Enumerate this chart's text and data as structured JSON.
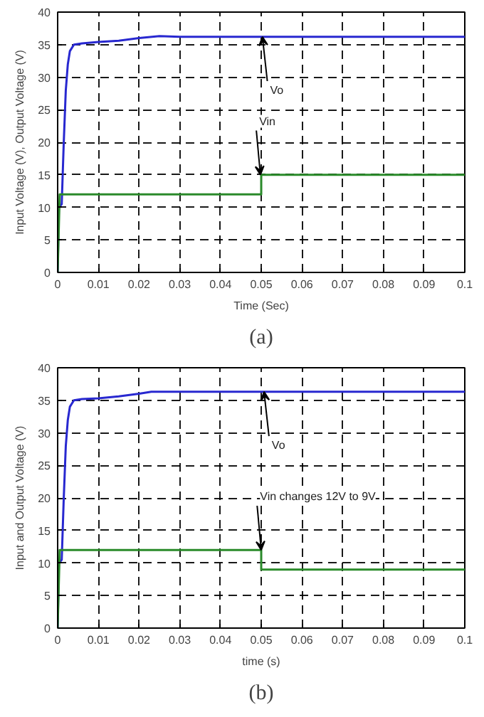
{
  "chart_data": [
    {
      "type": "line",
      "xlabel": "Time (Sec)",
      "ylabel": "Input Voltage (V), Output Voltage (V)",
      "xlim": [
        0,
        0.1
      ],
      "ylim": [
        0,
        40
      ],
      "xticks": [
        0,
        0.01,
        0.02,
        0.03,
        0.04,
        0.05,
        0.06,
        0.07,
        0.08,
        0.09,
        0.1
      ],
      "yticks": [
        0,
        5,
        10,
        15,
        20,
        25,
        30,
        35,
        40
      ],
      "grid": true,
      "line_style": "solid",
      "marker": "none",
      "series": [
        {
          "color": "#2828d0",
          "x": [
            0,
            0.0003,
            0.001,
            0.0015,
            0.002,
            0.0025,
            0.003,
            0.004,
            0.006,
            0.01,
            0.015,
            0.02,
            0.025,
            0.03,
            0.1
          ],
          "values": [
            0,
            10,
            10.5,
            20,
            28,
            32,
            34,
            35,
            35.2,
            35.4,
            35.6,
            36,
            36.3,
            36.2,
            36.2
          ]
        },
        {
          "color": "#2a8a2a",
          "x": [
            0,
            0.0005,
            0.05,
            0.05,
            0.1
          ],
          "values": [
            0,
            12,
            12,
            15,
            15
          ]
        }
      ],
      "annotations": [
        {
          "text": "Vo",
          "x": 0.0503,
          "y": 36.2
        },
        {
          "text": "Vin",
          "x": 0.0498,
          "y": 15
        },
        "(a)"
      ]
    },
    {
      "type": "line",
      "xlabel": "time (s)",
      "ylabel": "Input and Output Voltage (V)",
      "xlim": [
        0,
        0.1
      ],
      "ylim": [
        0,
        40
      ],
      "xticks": [
        0,
        0.01,
        0.02,
        0.03,
        0.04,
        0.05,
        0.06,
        0.07,
        0.08,
        0.09,
        0.1
      ],
      "yticks": [
        0,
        5,
        10,
        15,
        20,
        25,
        30,
        35,
        40
      ],
      "grid": true,
      "line_style": "solid",
      "marker": "none",
      "series": [
        {
          "color": "#2828d0",
          "x": [
            0,
            0.0003,
            0.001,
            0.0015,
            0.002,
            0.0025,
            0.003,
            0.004,
            0.006,
            0.01,
            0.015,
            0.02,
            0.023,
            0.1
          ],
          "values": [
            0,
            10,
            10.5,
            20,
            28,
            32,
            34,
            35,
            35.2,
            35.3,
            35.6,
            36,
            36.3,
            36.3
          ]
        },
        {
          "color": "#2a8a2a",
          "x": [
            0,
            0.0005,
            0.05,
            0.05,
            0.1
          ],
          "values": [
            0,
            12,
            12,
            9,
            9
          ]
        }
      ],
      "annotations": [
        {
          "text": "Vo",
          "x": 0.0507,
          "y": 36.3
        },
        {
          "text": "Vin changes 12V to 9V",
          "x": 0.05,
          "y": 12
        },
        "(b)"
      ]
    }
  ]
}
